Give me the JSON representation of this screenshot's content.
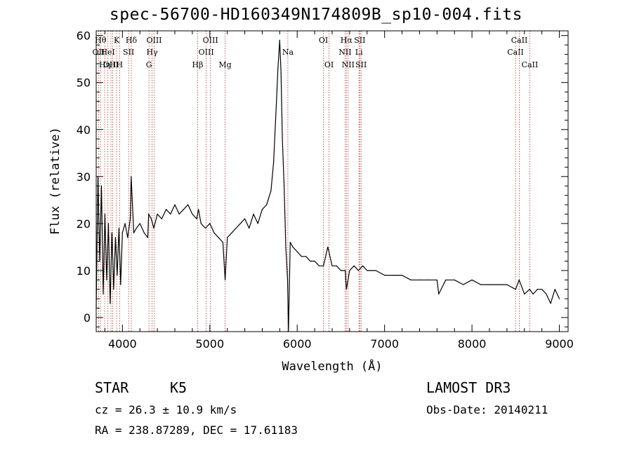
{
  "chart_data": {
    "type": "line",
    "title": "spec-56700-HD160349N174809B_sp10-004.fits",
    "xlabel": "Wavelength (Å)",
    "ylabel": "Flux (relative)",
    "xlim": [
      3700,
      9100
    ],
    "ylim": [
      -3,
      61
    ],
    "xticks": [
      4000,
      5000,
      6000,
      7000,
      8000,
      9000
    ],
    "yticks": [
      0,
      10,
      20,
      30,
      40,
      50,
      60
    ],
    "grid": false,
    "series": [
      {
        "x": [
          3700,
          3720,
          3740,
          3760,
          3780,
          3800,
          3820,
          3840,
          3860,
          3880,
          3900,
          3920,
          3940,
          3960,
          3980,
          4000,
          4030,
          4060,
          4090,
          4100,
          4130,
          4160,
          4200,
          4250,
          4290,
          4300,
          4330,
          4360,
          4400,
          4450,
          4500,
          4550,
          4600,
          4650,
          4700,
          4750,
          4800,
          4850,
          4870,
          4900,
          4950,
          5000,
          5050,
          5100,
          5150,
          5175,
          5200,
          5250,
          5300,
          5350,
          5400,
          5450,
          5500,
          5550,
          5600,
          5650,
          5700,
          5730,
          5760,
          5780,
          5800,
          5815,
          5830,
          5850,
          5870,
          5890,
          5900,
          5920,
          5950,
          6000,
          6050,
          6100,
          6150,
          6200,
          6250,
          6300,
          6350,
          6400,
          6450,
          6500,
          6550,
          6563,
          6600,
          6650,
          6700,
          6750,
          6800,
          6850,
          6900,
          7000,
          7100,
          7200,
          7300,
          7400,
          7500,
          7600,
          7620,
          7700,
          7800,
          7900,
          8000,
          8100,
          8200,
          8300,
          8400,
          8500,
          8540,
          8600,
          8660,
          8700,
          8750,
          8800,
          8850,
          8900,
          8950,
          9000
        ],
        "y": [
          2,
          30,
          12,
          28,
          5,
          22,
          8,
          20,
          3,
          18,
          6,
          17,
          9,
          19,
          7,
          18,
          20,
          17,
          21,
          30,
          18,
          19,
          20,
          18,
          17,
          22,
          21,
          19,
          22,
          21,
          23,
          22,
          24,
          22,
          23,
          24,
          22,
          21,
          23,
          20,
          19,
          20,
          18,
          17,
          16,
          8,
          17,
          18,
          19,
          20,
          21,
          19,
          22,
          20,
          23,
          24,
          27,
          33,
          45,
          53,
          59,
          52,
          38,
          28,
          15,
          8,
          -3,
          16,
          15,
          14,
          13,
          13,
          12,
          12,
          11,
          11,
          15,
          11,
          11,
          10,
          10,
          6,
          10,
          11,
          10,
          11,
          10,
          10,
          10,
          9,
          9,
          9,
          8,
          8,
          8,
          8,
          5,
          8,
          8,
          7,
          8,
          7,
          7,
          7,
          7,
          6,
          8,
          5,
          6,
          5,
          6,
          6,
          5,
          3,
          6,
          4
        ]
      }
    ],
    "lines": [
      {
        "w": 3727,
        "label": "OII",
        "row": 1
      },
      {
        "w": 3750,
        "label": "Hθ",
        "row": 0
      },
      {
        "w": 3797,
        "label": "Hη",
        "row": 2
      },
      {
        "w": 3834,
        "label": "HeI",
        "row": 1
      },
      {
        "w": 3869,
        "label": "OIII",
        "row": 2
      },
      {
        "w": 3889,
        "label": "H",
        "row": 2
      },
      {
        "w": 3934,
        "label": "K",
        "row": 0
      },
      {
        "w": 3968,
        "label": "H",
        "row": 2
      },
      {
        "w": 4071,
        "label": "SII",
        "row": 1
      },
      {
        "w": 4102,
        "label": "Hδ",
        "row": 0
      },
      {
        "w": 4304,
        "label": "G",
        "row": 2
      },
      {
        "w": 4340,
        "label": "Hγ",
        "row": 1
      },
      {
        "w": 4363,
        "label": "OIII",
        "row": 0
      },
      {
        "w": 4861,
        "label": "Hβ",
        "row": 2
      },
      {
        "w": 4959,
        "label": "OIII",
        "row": 1
      },
      {
        "w": 5007,
        "label": "OIII",
        "row": 0
      },
      {
        "w": 5175,
        "label": "Mg",
        "row": 2
      },
      {
        "w": 5893,
        "label": "Na",
        "row": 1
      },
      {
        "w": 6300,
        "label": "OI",
        "row": 0
      },
      {
        "w": 6364,
        "label": "OI",
        "row": 2
      },
      {
        "w": 6548,
        "label": "NII",
        "row": 1
      },
      {
        "w": 6563,
        "label": "Hα",
        "row": 0
      },
      {
        "w": 6583,
        "label": "NII",
        "row": 2
      },
      {
        "w": 6707,
        "label": "Li",
        "row": 1
      },
      {
        "w": 6716,
        "label": "SII",
        "row": 0
      },
      {
        "w": 6731,
        "label": "SII",
        "row": 2
      },
      {
        "w": 8498,
        "label": "CaII",
        "row": 1
      },
      {
        "w": 8542,
        "label": "CaII",
        "row": 0
      },
      {
        "w": 8662,
        "label": "CaII",
        "row": 2
      }
    ]
  },
  "info": {
    "class": "STAR",
    "subclass": "K5",
    "survey": "LAMOST DR3",
    "cz": "cz = 26.3 ± 10.9 km/s",
    "obs_date": "Obs-Date: 20140211",
    "coords": "RA = 238.87289, DEC =  17.61183"
  }
}
